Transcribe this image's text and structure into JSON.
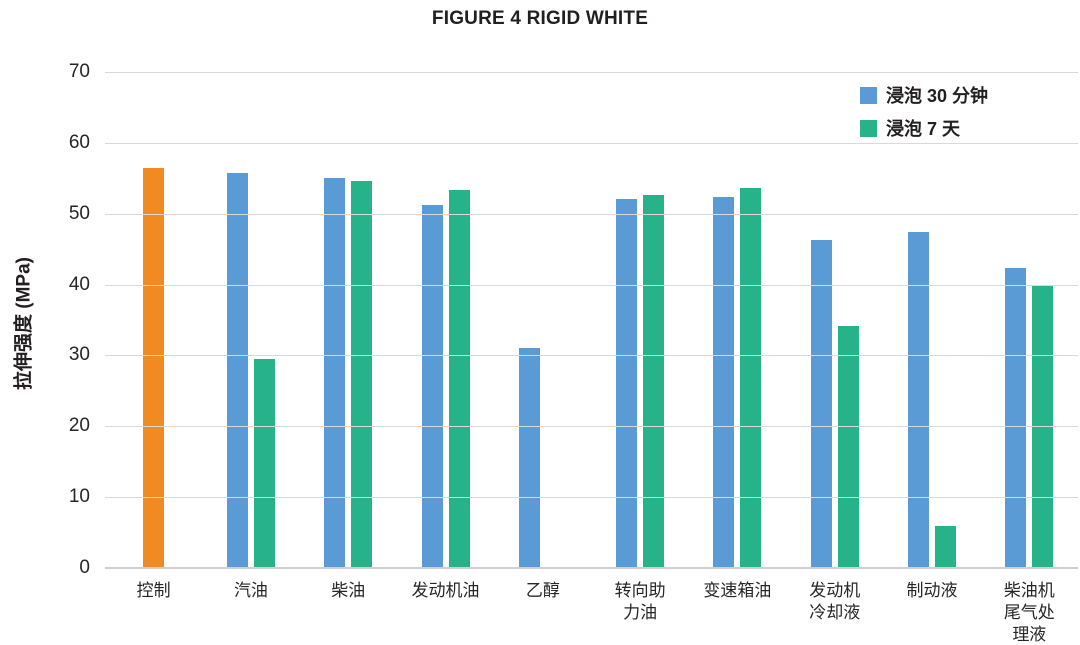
{
  "title": "FIGURE 4 RIGID WHITE",
  "y_axis_title": "拉伸强度 (MPa)",
  "legend": {
    "items": [
      {
        "label": "浸泡 30 分钟",
        "color": "#5b9bd5"
      },
      {
        "label": "浸泡 7 天",
        "color": "#26b38a"
      }
    ]
  },
  "colors": {
    "control_bar": "#f08a21",
    "series_30min": "#5b9bd5",
    "series_7day": "#26b38a",
    "gridline": "#d9d9d9",
    "baseline": "#cfcfcf",
    "text": "#231f20"
  },
  "chart_data": {
    "type": "bar",
    "title": "FIGURE 4 RIGID WHITE",
    "xlabel": "",
    "ylabel": "拉伸强度 (MPa)",
    "ylim": [
      0,
      70
    ],
    "y_ticks": [
      0,
      10,
      20,
      30,
      40,
      50,
      60,
      70
    ],
    "grid": true,
    "legend_position": "top-right",
    "categories": [
      "控制",
      "汽油",
      "柴油",
      "发动机油",
      "乙醇",
      "转向助力油",
      "变速箱油",
      "发动机冷却液",
      "制动液",
      "柴油机尾气处理液"
    ],
    "category_label_lines": [
      [
        "控制"
      ],
      [
        "汽油"
      ],
      [
        "柴油"
      ],
      [
        "发动机油"
      ],
      [
        "乙醇"
      ],
      [
        "转向助",
        "力油"
      ],
      [
        "变速箱油"
      ],
      [
        "发动机",
        "冷却液"
      ],
      [
        "制动液"
      ],
      [
        "柴油机",
        "尾气处",
        "理液"
      ]
    ],
    "control_series": {
      "name": "控制",
      "color": "#f08a21",
      "category": "控制",
      "value": 56.5
    },
    "series": [
      {
        "name": "浸泡 30 分钟",
        "color": "#5b9bd5",
        "values": [
          null,
          55.8,
          55.0,
          51.3,
          31.0,
          52.1,
          52.3,
          46.3,
          47.4,
          42.4
        ]
      },
      {
        "name": "浸泡 7 天",
        "color": "#26b38a",
        "values": [
          null,
          29.5,
          54.6,
          53.4,
          null,
          52.6,
          53.7,
          34.2,
          6.0,
          39.8
        ]
      }
    ]
  }
}
